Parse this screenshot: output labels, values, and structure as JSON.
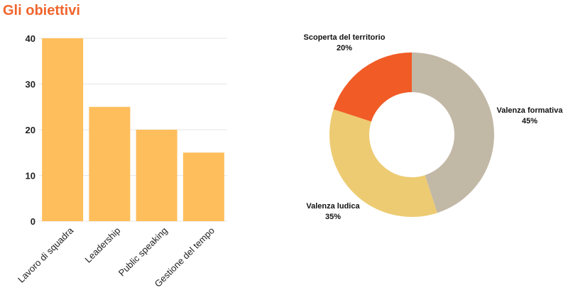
{
  "title": "Gli obiettivi",
  "colors": {
    "title": "#f0652d",
    "bar": "#ffbe5c",
    "grid": "#e6e6e6"
  },
  "chart_data": [
    {
      "type": "bar",
      "categories": [
        "Lavoro di squadra",
        "Leadership",
        "Public speaking",
        "Gestione del tempo"
      ],
      "values": [
        40,
        25,
        20,
        15
      ],
      "ylim": [
        0,
        40
      ],
      "yticks": [
        0,
        10,
        20,
        30,
        40
      ],
      "grid": true,
      "color": "#ffbe5c"
    },
    {
      "type": "pie",
      "donut": true,
      "slices": [
        {
          "label": "Valenza formativa",
          "value": 45,
          "value_label": "45%",
          "color": "#c2b8a6"
        },
        {
          "label": "Valenza ludica",
          "value": 35,
          "value_label": "35%",
          "color": "#edcb72"
        },
        {
          "label": "Scoperta del territorio",
          "value": 20,
          "value_label": "20%",
          "color": "#f15b26"
        }
      ]
    }
  ]
}
